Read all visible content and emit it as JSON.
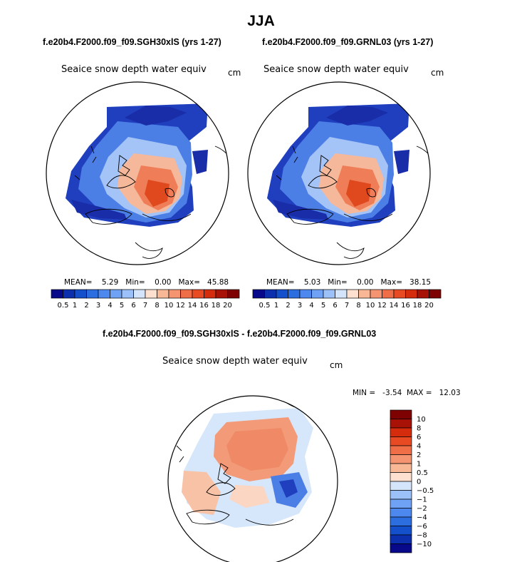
{
  "title": "JJA",
  "panels": [
    {
      "case_title": "f.e20b4.F2000.f09_f09.SGH30xlS (yrs 1-27)",
      "variable": "Seaice snow depth water equiv",
      "units": "cm",
      "stats": {
        "mean_label": "MEAN=",
        "mean": "5.29",
        "min_label": "Min=",
        "min": "0.00",
        "max_label": "Max=",
        "max": "45.88"
      }
    },
    {
      "case_title": "f.e20b4.F2000.f09_f09.GRNL03 (yrs 1-27)",
      "variable": "Seaice snow depth water equiv",
      "units": "cm",
      "stats": {
        "mean_label": "MEAN=",
        "mean": "5.03",
        "min_label": "Min=",
        "min": "0.00",
        "max_label": "Max=",
        "max": "38.15"
      }
    }
  ],
  "diff_panel": {
    "case_title": "f.e20b4.F2000.f09_f09.SGH30xlS - f.e20b4.F2000.f09_f09.GRNL03",
    "variable": "Seaice snow depth water equiv",
    "units": "cm",
    "minmax": "MIN =   -3.54  MAX =   12.03"
  },
  "abs_colorbar": {
    "labels": [
      "0.5",
      "1",
      "2",
      "3",
      "4",
      "5",
      "6",
      "7",
      "8",
      "10",
      "12",
      "14",
      "16",
      "18",
      "20"
    ],
    "colors": [
      "#08088a",
      "#0c2fae",
      "#1450cc",
      "#2c6ee0",
      "#4c88ee",
      "#6fa2f4",
      "#9cc0f8",
      "#d4e4fb",
      "#fde0d0",
      "#f8b896",
      "#f49470",
      "#ef6e48",
      "#e84a24",
      "#d42c0c",
      "#a81206",
      "#7e0202"
    ]
  },
  "diff_colorbar": {
    "labels": [
      "10",
      "8",
      "6",
      "4",
      "2",
      "1",
      "0.5",
      "0",
      "−0.5",
      "−1",
      "−2",
      "−4",
      "−6",
      "−8",
      "−10"
    ],
    "colors": [
      "#7e0202",
      "#a81206",
      "#d42c0c",
      "#e84a24",
      "#ef6e48",
      "#f49470",
      "#f8b896",
      "#fde0d0",
      "#d4e4fb",
      "#9cc0f8",
      "#6fa2f4",
      "#4c88ee",
      "#2c6ee0",
      "#1450cc",
      "#0c2fae",
      "#08088a"
    ]
  }
}
